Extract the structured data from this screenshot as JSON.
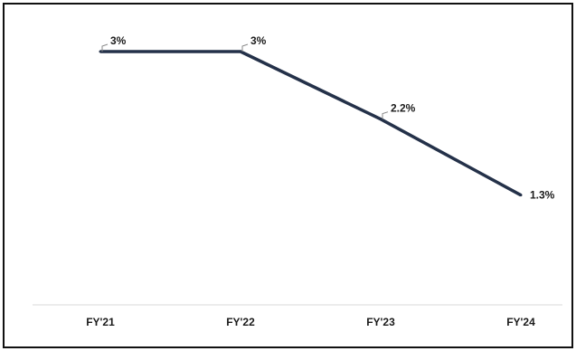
{
  "chart_data": {
    "type": "line",
    "categories": [
      "FY'21",
      "FY'22",
      "FY'23",
      "FY'24"
    ],
    "series": [
      {
        "values": [
          3,
          3,
          2.2,
          1.3
        ],
        "labels": [
          "3%",
          "3%",
          "2.2%",
          "1.3%"
        ]
      }
    ],
    "ylim": [
      0,
      3
    ],
    "grid": false,
    "legend": "none",
    "colors": {
      "line": "#243149",
      "text": "#1b1b1b",
      "axis": "#d9d9d9",
      "leader": "#8a8a8a",
      "frame": "#111111"
    }
  }
}
